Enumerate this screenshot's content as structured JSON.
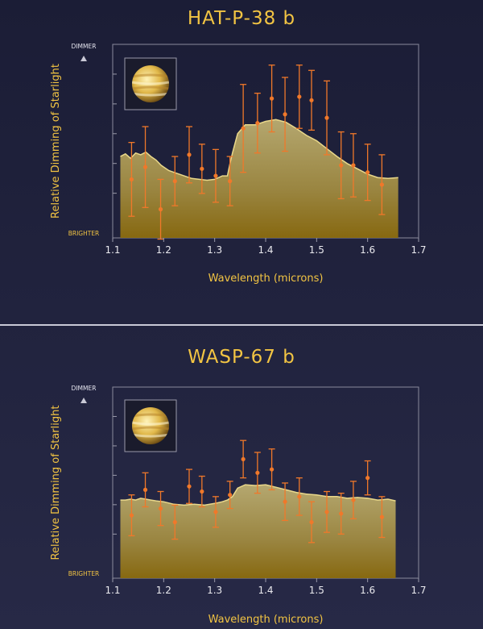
{
  "chart_data": [
    {
      "type": "scatter",
      "title": "HAT-P-38 b",
      "xlabel": "Wavelength (microns)",
      "ylabel": "Relative Dimming of Starlight",
      "y_top_label": "DIMMER",
      "y_bottom_label": "BRIGHTER",
      "xlim": [
        1.1,
        1.7
      ],
      "ylim": [
        0,
        100
      ],
      "xticks": [
        "1.1",
        "1.2",
        "1.3",
        "1.4",
        "1.5",
        "1.6",
        "1.7"
      ],
      "grid": false,
      "inset": "planet-image",
      "colors": {
        "points": "#f0782a",
        "model_fill": "#a89a5c",
        "title": "#f2c443"
      },
      "model": {
        "x": [
          1.115,
          1.125,
          1.135,
          1.145,
          1.155,
          1.165,
          1.175,
          1.185,
          1.195,
          1.21,
          1.225,
          1.24,
          1.255,
          1.27,
          1.285,
          1.3,
          1.315,
          1.325,
          1.33,
          1.335,
          1.345,
          1.36,
          1.38,
          1.4,
          1.42,
          1.44,
          1.46,
          1.48,
          1.5,
          1.52,
          1.54,
          1.56,
          1.58,
          1.6,
          1.62,
          1.64,
          1.66
        ],
        "y": [
          44,
          45.5,
          43,
          46,
          45,
          46.5,
          44,
          42,
          39,
          36,
          34.5,
          33,
          31.5,
          31,
          30.5,
          31,
          33,
          33,
          40,
          46,
          57,
          62,
          62,
          64,
          65,
          63.5,
          60,
          56,
          53,
          48.5,
          44,
          40,
          37,
          34,
          32,
          31.5,
          32
        ]
      },
      "points": [
        {
          "x": 1.137,
          "y": 31,
          "err": 21
        },
        {
          "x": 1.164,
          "y": 38,
          "err": 23
        },
        {
          "x": 1.194,
          "y": 14,
          "err": 17
        },
        {
          "x": 1.222,
          "y": 30,
          "err": 14
        },
        {
          "x": 1.25,
          "y": 45,
          "err": 16
        },
        {
          "x": 1.275,
          "y": 37,
          "err": 14
        },
        {
          "x": 1.302,
          "y": 33,
          "err": 15
        },
        {
          "x": 1.33,
          "y": 30,
          "err": 14
        },
        {
          "x": 1.356,
          "y": 60,
          "err": 25
        },
        {
          "x": 1.384,
          "y": 63,
          "err": 17
        },
        {
          "x": 1.412,
          "y": 77,
          "err": 19
        },
        {
          "x": 1.438,
          "y": 68,
          "err": 21
        },
        {
          "x": 1.466,
          "y": 78,
          "err": 18
        },
        {
          "x": 1.49,
          "y": 76,
          "err": 17
        },
        {
          "x": 1.52,
          "y": 66,
          "err": 21
        },
        {
          "x": 1.548,
          "y": 39,
          "err": 19
        },
        {
          "x": 1.572,
          "y": 39,
          "err": 18
        },
        {
          "x": 1.6,
          "y": 35,
          "err": 16
        },
        {
          "x": 1.628,
          "y": 28,
          "err": 17
        }
      ]
    },
    {
      "type": "scatter",
      "title": "WASP-67 b",
      "xlabel": "Wavelength (microns)",
      "ylabel": "Relative Dimming of Starlight",
      "y_top_label": "DIMMER",
      "y_bottom_label": "BRIGHTER",
      "xlim": [
        1.1,
        1.7
      ],
      "ylim": [
        0,
        100
      ],
      "xticks": [
        "1.1",
        "1.2",
        "1.3",
        "1.4",
        "1.5",
        "1.6",
        "1.7"
      ],
      "grid": false,
      "inset": "planet-image",
      "colors": {
        "points": "#f0782a",
        "model_fill": "#a89a5c",
        "title": "#f2c443"
      },
      "model": {
        "x": [
          1.115,
          1.125,
          1.135,
          1.145,
          1.155,
          1.165,
          1.175,
          1.185,
          1.2,
          1.22,
          1.24,
          1.26,
          1.28,
          1.3,
          1.315,
          1.325,
          1.335,
          1.345,
          1.36,
          1.38,
          1.4,
          1.42,
          1.44,
          1.46,
          1.48,
          1.5,
          1.52,
          1.54,
          1.56,
          1.58,
          1.6,
          1.62,
          1.64,
          1.655
        ],
        "y": [
          45,
          45,
          45.5,
          45,
          46,
          45.5,
          45,
          44.5,
          44,
          42.5,
          42,
          42.5,
          42,
          43,
          44,
          45,
          47,
          52,
          54,
          53.5,
          54,
          52.5,
          51,
          49.5,
          48.5,
          48,
          47,
          47,
          46,
          46.5,
          46,
          45,
          45.5,
          44.5
        ]
      },
      "points": [
        {
          "x": 1.137,
          "y": 36,
          "err": 12
        },
        {
          "x": 1.164,
          "y": 51,
          "err": 10
        },
        {
          "x": 1.194,
          "y": 40,
          "err": 10
        },
        {
          "x": 1.222,
          "y": 32,
          "err": 10
        },
        {
          "x": 1.25,
          "y": 53,
          "err": 10
        },
        {
          "x": 1.275,
          "y": 50,
          "err": 9
        },
        {
          "x": 1.302,
          "y": 38,
          "err": 9
        },
        {
          "x": 1.33,
          "y": 48,
          "err": 8
        },
        {
          "x": 1.356,
          "y": 69,
          "err": 11
        },
        {
          "x": 1.384,
          "y": 61,
          "err": 12
        },
        {
          "x": 1.412,
          "y": 63,
          "err": 12
        },
        {
          "x": 1.438,
          "y": 44,
          "err": 11
        },
        {
          "x": 1.466,
          "y": 47,
          "err": 11
        },
        {
          "x": 1.49,
          "y": 32,
          "err": 12
        },
        {
          "x": 1.52,
          "y": 38,
          "err": 12
        },
        {
          "x": 1.548,
          "y": 37,
          "err": 12
        },
        {
          "x": 1.572,
          "y": 45,
          "err": 11
        },
        {
          "x": 1.6,
          "y": 58,
          "err": 10
        },
        {
          "x": 1.628,
          "y": 35,
          "err": 12
        }
      ]
    }
  ]
}
